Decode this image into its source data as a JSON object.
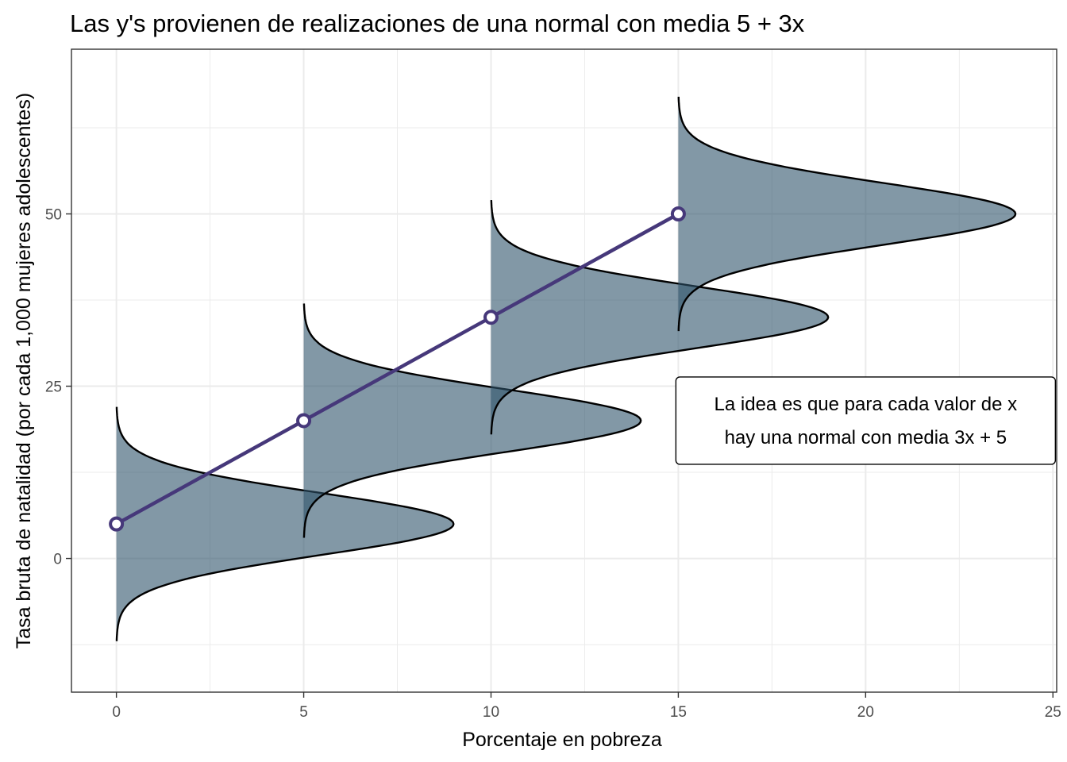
{
  "chart_data": {
    "type": "area",
    "title": "Las y's provienen de realizaciones de una normal con media 5 + 3x",
    "xlabel": "Porcentaje en pobreza",
    "ylabel": "Tasa bruta de natalidad (por cada 1,000 mujeres adolescentes)",
    "xlim": [
      -1.2,
      25.1
    ],
    "ylim": [
      -19.4,
      73.9
    ],
    "x_ticks": [
      0,
      5,
      10,
      15,
      20,
      25
    ],
    "y_ticks": [
      0,
      25,
      50
    ],
    "x_tick_labels": [
      "0",
      "5",
      "10",
      "15",
      "20",
      "25"
    ],
    "y_tick_labels": [
      "0",
      "25",
      "50"
    ],
    "grid": true,
    "line": {
      "x": [
        0,
        5,
        10,
        15
      ],
      "y": [
        5,
        20,
        35,
        50
      ],
      "color": "#46387a"
    },
    "densities": {
      "centers_x": [
        0,
        5,
        10,
        15
      ],
      "means": [
        5,
        20,
        35,
        50
      ],
      "sd": 4.5,
      "y_ranges": [
        [
          -12,
          22
        ],
        [
          3,
          37
        ],
        [
          18,
          52
        ],
        [
          33,
          67
        ]
      ],
      "peak_width_x": 9,
      "fill_color": "#2f536b",
      "fill_opacity": 0.6,
      "outline_color": "#000000"
    },
    "annotation": {
      "lines": [
        "La idea es que para cada valor de x",
        "hay una normal con media 3x + 5"
      ],
      "x": 20,
      "y": 20
    }
  }
}
